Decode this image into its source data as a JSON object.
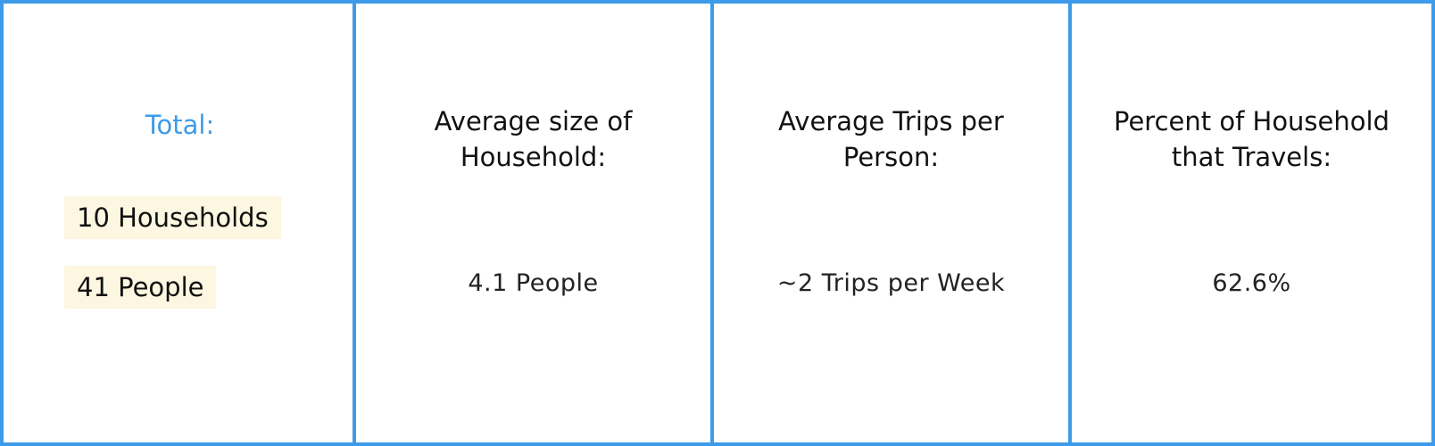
{
  "totals": {
    "label": "Total:",
    "households": "10 Households",
    "people": "41 People"
  },
  "household_size": {
    "heading_line1": "Average size of",
    "heading_line2": "Household:",
    "value": "4.1 People"
  },
  "trips_per_person": {
    "heading_line1": "Average Trips per",
    "heading_line2": "Person:",
    "value": "~2 Trips per Week"
  },
  "travel_percent": {
    "heading_line1": "Percent of Household",
    "heading_line2": "that Travels:",
    "value": "62.6%"
  },
  "colors": {
    "border": "#3d9be9",
    "accent_text": "#3d9be9",
    "highlight": "#fdf6e0"
  }
}
